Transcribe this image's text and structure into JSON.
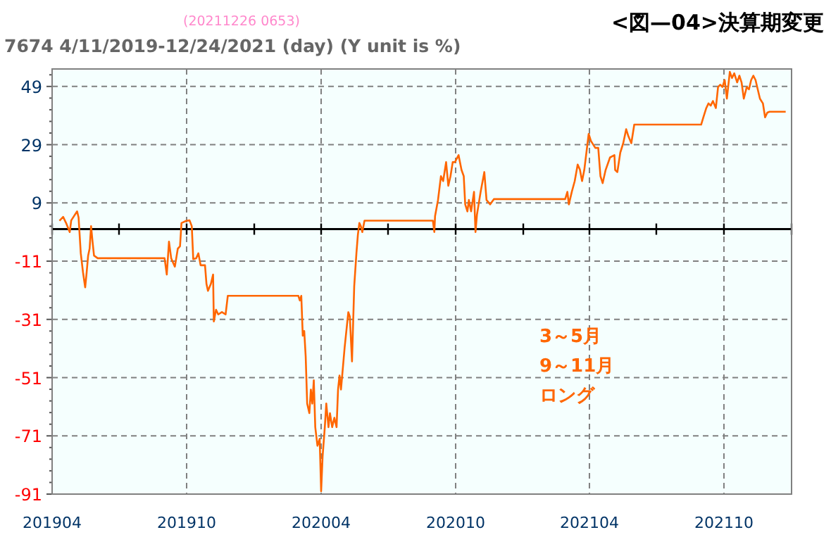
{
  "chart_data": {
    "type": "line",
    "title": "<図—04>決算期変更",
    "subtitle": "7674 4/11/2019-12/24/2021 (day)  (Y unit is %)",
    "annotations": [
      "(20211226 0653)",
      "3～5月",
      "9～11月",
      "ロング"
    ],
    "xlim": [
      "2019-04-01",
      "2022-01-01"
    ],
    "xticks": [
      {
        "value": "2019-04-01",
        "label": "201904"
      },
      {
        "value": "2019-07-01",
        "label": null
      },
      {
        "value": "2019-10-01",
        "label": "201910"
      },
      {
        "value": "2020-01-01",
        "label": null
      },
      {
        "value": "2020-04-01",
        "label": "202004"
      },
      {
        "value": "2020-07-01",
        "label": null
      },
      {
        "value": "2020-10-01",
        "label": "202010"
      },
      {
        "value": "2021-01-01",
        "label": null
      },
      {
        "value": "2021-04-01",
        "label": "202104"
      },
      {
        "value": "2021-07-01",
        "label": null
      },
      {
        "value": "2021-10-01",
        "label": "202110"
      },
      {
        "value": "2022-01-01",
        "label": null
      }
    ],
    "ylim": [
      -91,
      55
    ],
    "yticks": [
      -91,
      {
        "value": -87,
        "label": null
      },
      {
        "value": -83,
        "label": null
      },
      {
        "value": -79,
        "label": null
      },
      {
        "value": -75,
        "label": null
      },
      -71,
      {
        "value": -67,
        "label": null
      },
      {
        "value": -63,
        "label": null
      },
      {
        "value": -59,
        "label": null
      },
      {
        "value": -55,
        "label": null
      },
      -51,
      {
        "value": -47,
        "label": null
      },
      {
        "value": -43,
        "label": null
      },
      {
        "value": -39,
        "label": null
      },
      {
        "value": -35,
        "label": null
      },
      -31,
      {
        "value": -27,
        "label": null
      },
      {
        "value": -23,
        "label": null
      },
      {
        "value": -19,
        "label": null
      },
      {
        "value": -15,
        "label": null
      },
      -11,
      {
        "value": -7,
        "label": null
      },
      {
        "value": -3,
        "label": null
      },
      {
        "value": 1,
        "label": null
      },
      {
        "value": 5,
        "label": null
      },
      9,
      {
        "value": 13,
        "label": null
      },
      {
        "value": 17,
        "label": null
      },
      {
        "value": 21,
        "label": null
      },
      {
        "value": 25,
        "label": null
      },
      29,
      {
        "value": 33,
        "label": null
      },
      {
        "value": 37,
        "label": null
      },
      {
        "value": 41,
        "label": null
      },
      {
        "value": 45,
        "label": null
      },
      49,
      {
        "value": 53,
        "label": null
      }
    ],
    "grid": true,
    "marker": "none",
    "line_style": "solid",
    "ref_lines": [
      {
        "axis": "y",
        "value": 0,
        "color": "#000000"
      }
    ],
    "series": [
      {
        "color": "#ff6600",
        "x": [
          "2019-04-11",
          "2019-04-16",
          "2019-04-20",
          "2019-04-25",
          "2019-04-27",
          "2019-05-05",
          "2019-05-07",
          "2019-05-10",
          "2019-05-13",
          "2019-05-16",
          "2019-05-18",
          "2019-05-20",
          "2019-05-22",
          "2019-05-24",
          "2019-05-26",
          "2019-05-28",
          "2019-06-02",
          "2019-09-01",
          "2019-09-04",
          "2019-09-07",
          "2019-09-10",
          "2019-09-15",
          "2019-09-19",
          "2019-09-22",
          "2019-09-24",
          "2019-10-01",
          "2019-10-05",
          "2019-10-08",
          "2019-10-10",
          "2019-10-14",
          "2019-10-17",
          "2019-10-20",
          "2019-10-26",
          "2019-10-28",
          "2019-10-30",
          "2019-11-03",
          "2019-11-06",
          "2019-11-07",
          "2019-11-10",
          "2019-11-13",
          "2019-11-18",
          "2019-11-23",
          "2019-11-26",
          "2019-11-29",
          "2020-03-01",
          "2020-03-03",
          "2020-03-05",
          "2020-03-07",
          "2020-03-09",
          "2020-03-11",
          "2020-03-13",
          "2020-03-16",
          "2020-03-18",
          "2020-03-20",
          "2020-03-22",
          "2020-03-24",
          "2020-03-27",
          "2020-03-30",
          "2020-04-01",
          "2020-04-03",
          "2020-04-06",
          "2020-04-08",
          "2020-04-11",
          "2020-04-13",
          "2020-04-16",
          "2020-04-19",
          "2020-04-22",
          "2020-04-24",
          "2020-04-26",
          "2020-04-28",
          "2020-05-03",
          "2020-05-08",
          "2020-05-10",
          "2020-05-13",
          "2020-05-16",
          "2020-05-19",
          "2020-05-21",
          "2020-05-23",
          "2020-05-25",
          "2020-05-27",
          "2020-05-30",
          "2020-08-31",
          "2020-09-02",
          "2020-09-03",
          "2020-09-07",
          "2020-09-11",
          "2020-09-14",
          "2020-09-18",
          "2020-09-21",
          "2020-09-24",
          "2020-09-27",
          "2020-09-30",
          "2020-10-05",
          "2020-10-09",
          "2020-10-12",
          "2020-10-14",
          "2020-10-17",
          "2020-10-19",
          "2020-10-22",
          "2020-10-26",
          "2020-10-28",
          "2020-10-30",
          "2020-11-04",
          "2020-11-09",
          "2020-11-12",
          "2020-11-17",
          "2020-11-22",
          "2020-11-27",
          "2021-02-27",
          "2021-03-02",
          "2021-03-04",
          "2021-03-08",
          "2021-03-12",
          "2021-03-16",
          "2021-03-19",
          "2021-03-22",
          "2021-03-25",
          "2021-03-31",
          "2021-04-03",
          "2021-04-09",
          "2021-04-13",
          "2021-04-16",
          "2021-04-19",
          "2021-04-23",
          "2021-04-29",
          "2021-05-05",
          "2021-05-06",
          "2021-05-09",
          "2021-05-13",
          "2021-05-17",
          "2021-05-21",
          "2021-05-24",
          "2021-05-28",
          "2021-06-01",
          "2021-08-31",
          "2021-09-03",
          "2021-09-07",
          "2021-09-10",
          "2021-09-13",
          "2021-09-16",
          "2021-09-20",
          "2021-09-23",
          "2021-09-26",
          "2021-09-29",
          "2021-10-02",
          "2021-10-05",
          "2021-10-09",
          "2021-10-12",
          "2021-10-15",
          "2021-10-19",
          "2021-10-22",
          "2021-10-25",
          "2021-10-28",
          "2021-11-01",
          "2021-11-04",
          "2021-11-07",
          "2021-11-10",
          "2021-11-13",
          "2021-11-16",
          "2021-11-19",
          "2021-11-23",
          "2021-11-26",
          "2021-11-29",
          "2021-12-02",
          "2021-12-24"
        ],
        "values": [
          2.9,
          4.2,
          2.1,
          -1.0,
          3.0,
          6.1,
          4.0,
          -8.3,
          -14.8,
          -20.0,
          -14.8,
          -9.1,
          -6.7,
          1.0,
          -4.3,
          -9.1,
          -10.0,
          -10.0,
          -15.6,
          -4.3,
          -10.0,
          -12.9,
          -6.7,
          -5.9,
          2.1,
          2.9,
          3.0,
          1.0,
          -10.3,
          -10.0,
          -8.3,
          -12.4,
          -12.4,
          -18.8,
          -21.2,
          -18.8,
          -15.6,
          -31.7,
          -27.7,
          -29.3,
          -28.5,
          -29.3,
          -22.9,
          -22.9,
          -22.9,
          -24.5,
          -22.9,
          -36.6,
          -35.0,
          -43.8,
          -59.9,
          -63.2,
          -55.1,
          -59.9,
          -51.9,
          -68.0,
          -74.4,
          -72.0,
          -90.0,
          -78.0,
          -68.0,
          -59.9,
          -68.0,
          -63.2,
          -68.0,
          -64.8,
          -68.0,
          -55.1,
          -50.3,
          -55.1,
          -40.6,
          -28.5,
          -30.0,
          -45.4,
          -19.6,
          -8.3,
          -1.9,
          2.1,
          1.0,
          -1.0,
          2.9,
          2.9,
          -1.0,
          4.5,
          10.0,
          18.2,
          16.5,
          23.0,
          14.9,
          18.2,
          23.0,
          23.0,
          25.4,
          20.3,
          18.2,
          8.5,
          6.1,
          10.0,
          6.1,
          12.8,
          -1.0,
          5.0,
          12.8,
          19.6,
          10.0,
          8.5,
          10.3,
          10.3,
          10.3,
          12.8,
          8.5,
          12.8,
          16.5,
          22.2,
          20.5,
          16.5,
          20.3,
          32.7,
          30.3,
          27.9,
          27.9,
          18.2,
          15.8,
          20.3,
          24.6,
          25.4,
          20.3,
          19.6,
          26.3,
          29.5,
          34.3,
          31.9,
          29.5,
          35.9,
          35.9,
          38.4,
          41.6,
          43.2,
          42.4,
          44.0,
          41.6,
          48.8,
          49.6,
          48.8,
          51.2,
          44.8,
          54.0,
          51.9,
          53.5,
          50.4,
          52.7,
          50.4,
          44.8,
          48.8,
          48.0,
          51.2,
          52.7,
          51.2,
          48.0,
          44.8,
          43.2,
          38.4,
          40.0,
          40.3,
          40.3
        ]
      }
    ]
  }
}
